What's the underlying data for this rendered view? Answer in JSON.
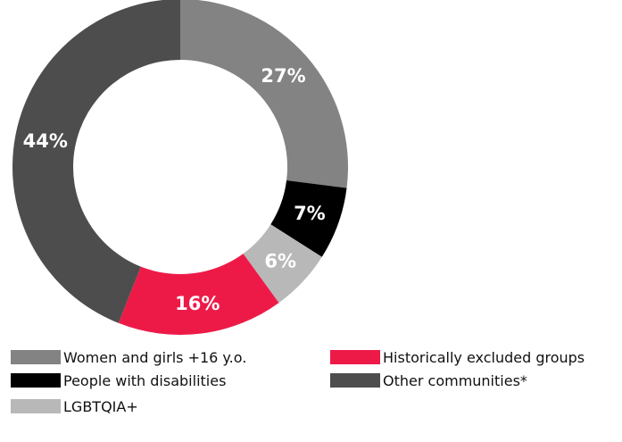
{
  "chart_data": {
    "type": "pie",
    "donut": true,
    "slices": [
      {
        "label": "Women and girls +16 y.o.",
        "value": 27,
        "display": "27%",
        "color": "#838383",
        "text_color": "#ffffff"
      },
      {
        "label": "People with disabilities",
        "value": 7,
        "display": "7%",
        "color": "#000000",
        "text_color": "#ffffff"
      },
      {
        "label": "LGBTQIA+",
        "value": 6,
        "display": "6%",
        "color": "#b8b8b8",
        "text_color": "#ffffff"
      },
      {
        "label": "Historically excluded groups",
        "value": 16,
        "display": "16%",
        "color": "#ed1a48",
        "text_color": "#ffffff"
      },
      {
        "label": "Other communities*",
        "value": 44,
        "display": "44%",
        "color": "#4d4d4d",
        "text_color": "#ffffff"
      }
    ],
    "legend": {
      "placement": "bottom",
      "columns": [
        [
          "Women and girls +16 y.o.",
          "People with disabilities",
          "LGBTQIA+"
        ],
        [
          "Historically excluded groups",
          "Other communities*"
        ]
      ]
    }
  }
}
